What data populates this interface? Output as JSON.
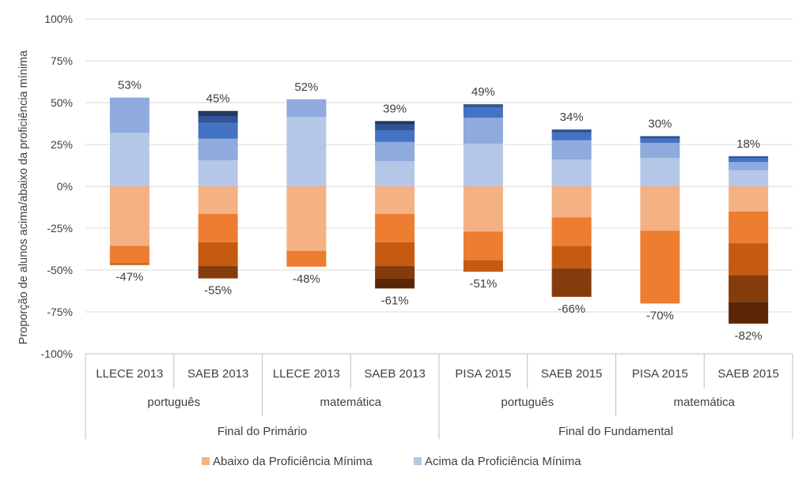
{
  "chart_data": {
    "type": "bar",
    "subtype": "stacked-diverging",
    "ylabel": "Proporção de alunos acima/abaixo da  proficiência mínima",
    "ylim": [
      -100,
      100
    ],
    "yticks": [
      -100,
      -75,
      -50,
      -25,
      0,
      25,
      50,
      75,
      100
    ],
    "ytick_labels": [
      "-100%",
      "-75%",
      "-50%",
      "-25%",
      "0%",
      "25%",
      "50%",
      "75%",
      "100%"
    ],
    "grid": true,
    "categories": [
      "LLECE 2013",
      "SAEB 2013",
      "LLECE 2013",
      "SAEB 2013",
      "PISA 2015",
      "SAEB 2015",
      "PISA 2015",
      "SAEB 2015"
    ],
    "subjects": [
      {
        "label": "português",
        "span": [
          0,
          1
        ]
      },
      {
        "label": "matemática",
        "span": [
          2,
          3
        ]
      },
      {
        "label": "português",
        "span": [
          4,
          5
        ]
      },
      {
        "label": "matemática",
        "span": [
          6,
          7
        ]
      }
    ],
    "stages": [
      {
        "label": "Final do Primário",
        "span": [
          0,
          3
        ]
      },
      {
        "label": "Final do Fundamental",
        "span": [
          4,
          7
        ]
      }
    ],
    "bars": [
      {
        "above": [
          32,
          21
        ],
        "below": [
          35.5,
          10.5,
          1
        ],
        "above_label": "53%",
        "below_label": "-47%"
      },
      {
        "above": [
          15.5,
          13,
          9.5,
          4,
          2,
          1
        ],
        "below": [
          16.5,
          17,
          14,
          7.5
        ],
        "above_label": "45%",
        "below_label": "-55%"
      },
      {
        "above": [
          41.5,
          10.5
        ],
        "below": [
          38.5,
          9.5
        ],
        "above_label": "52%",
        "below_label": "-48%"
      },
      {
        "above": [
          15,
          11.5,
          7,
          3.5,
          2
        ],
        "below": [
          16.5,
          17,
          14,
          7.5,
          6
        ],
        "above_label": "39%",
        "below_label": "-61%"
      },
      {
        "above": [
          25.5,
          15.5,
          6,
          1.5,
          0.5
        ],
        "below": [
          27,
          17,
          7
        ],
        "above_label": "49%",
        "below_label": "-51%"
      },
      {
        "above": [
          16,
          11.5,
          4.5,
          2
        ],
        "below": [
          18.5,
          17,
          13.5,
          17
        ],
        "above_label": "34%",
        "below_label": "-66%"
      },
      {
        "above": [
          17,
          9,
          2.5,
          1.5
        ],
        "below": [
          26.5,
          43.5
        ],
        "above_label": "30%",
        "below_label": "-70%"
      },
      {
        "above": [
          9.5,
          5,
          2.5,
          1
        ],
        "below": [
          15,
          19,
          19,
          16,
          13
        ],
        "above_label": "18%",
        "below_label": "-82%"
      }
    ],
    "above_colors": [
      "#b4c7e7",
      "#8faadc",
      "#4472c4",
      "#2f5597",
      "#1f3864",
      "#16253f"
    ],
    "below_colors": [
      "#f4b183",
      "#ed7d31",
      "#c55a11",
      "#843c0c",
      "#5a2606"
    ],
    "legend": [
      {
        "label": "Abaixo da Proficiência Mínima",
        "color": "#f4b183"
      },
      {
        "label": "Acima da Proficiência Mínima",
        "color": "#b4c7e7"
      }
    ],
    "legend_position": "bottom"
  }
}
